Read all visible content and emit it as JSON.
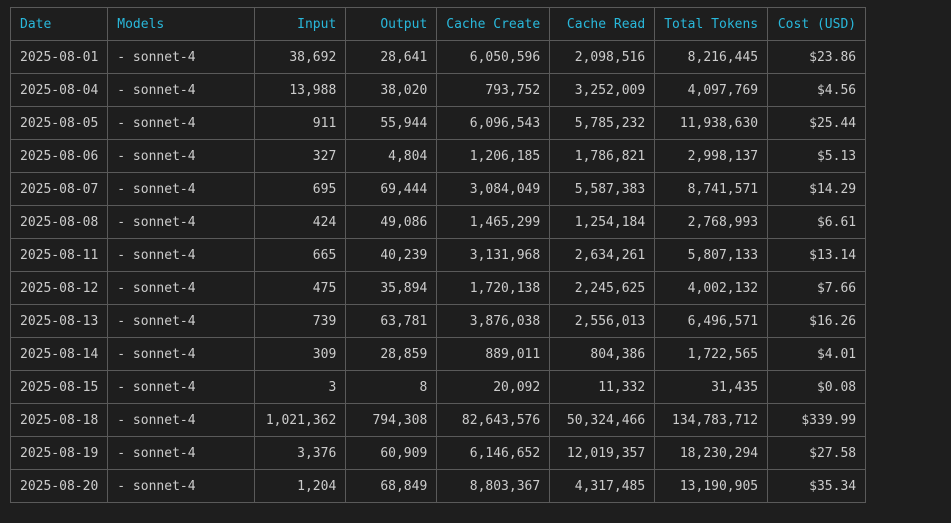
{
  "table": {
    "headers": [
      "Date",
      "Models",
      "Input",
      "Output",
      "Cache Create",
      "Cache Read",
      "Total Tokens",
      "Cost (USD)"
    ],
    "rows": [
      [
        "2025-08-01",
        "- sonnet-4",
        "38,692",
        "28,641",
        "6,050,596",
        "2,098,516",
        "8,216,445",
        "$23.86"
      ],
      [
        "2025-08-04",
        "- sonnet-4",
        "13,988",
        "38,020",
        "793,752",
        "3,252,009",
        "4,097,769",
        "$4.56"
      ],
      [
        "2025-08-05",
        "- sonnet-4",
        "911",
        "55,944",
        "6,096,543",
        "5,785,232",
        "11,938,630",
        "$25.44"
      ],
      [
        "2025-08-06",
        "- sonnet-4",
        "327",
        "4,804",
        "1,206,185",
        "1,786,821",
        "2,998,137",
        "$5.13"
      ],
      [
        "2025-08-07",
        "- sonnet-4",
        "695",
        "69,444",
        "3,084,049",
        "5,587,383",
        "8,741,571",
        "$14.29"
      ],
      [
        "2025-08-08",
        "- sonnet-4",
        "424",
        "49,086",
        "1,465,299",
        "1,254,184",
        "2,768,993",
        "$6.61"
      ],
      [
        "2025-08-11",
        "- sonnet-4",
        "665",
        "40,239",
        "3,131,968",
        "2,634,261",
        "5,807,133",
        "$13.14"
      ],
      [
        "2025-08-12",
        "- sonnet-4",
        "475",
        "35,894",
        "1,720,138",
        "2,245,625",
        "4,002,132",
        "$7.66"
      ],
      [
        "2025-08-13",
        "- sonnet-4",
        "739",
        "63,781",
        "3,876,038",
        "2,556,013",
        "6,496,571",
        "$16.26"
      ],
      [
        "2025-08-14",
        "- sonnet-4",
        "309",
        "28,859",
        "889,011",
        "804,386",
        "1,722,565",
        "$4.01"
      ],
      [
        "2025-08-15",
        "- sonnet-4",
        "3",
        "8",
        "20,092",
        "11,332",
        "31,435",
        "$0.08"
      ],
      [
        "2025-08-18",
        "- sonnet-4",
        "1,021,362",
        "794,308",
        "82,643,576",
        "50,324,466",
        "134,783,712",
        "$339.99"
      ],
      [
        "2025-08-19",
        "- sonnet-4",
        "3,376",
        "60,909",
        "6,146,652",
        "12,019,357",
        "18,230,294",
        "$27.58"
      ],
      [
        "2025-08-20",
        "- sonnet-4",
        "1,204",
        "68,849",
        "8,803,367",
        "4,317,485",
        "13,190,905",
        "$35.34"
      ]
    ]
  },
  "colors": {
    "background": "#1e1e1e",
    "header_text": "#29b8db",
    "cell_text": "#cccccc",
    "border": "#5a5a5a"
  }
}
